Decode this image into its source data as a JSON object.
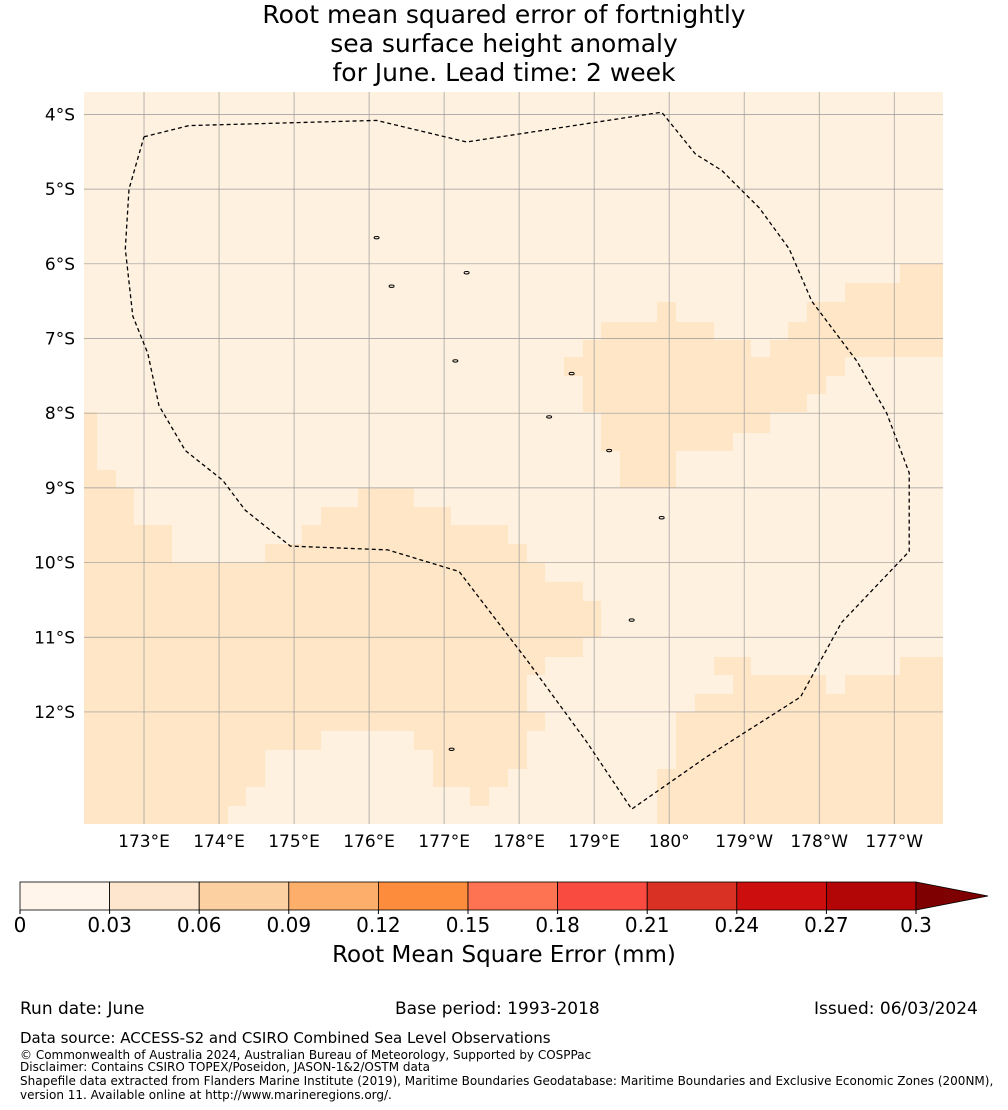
{
  "title_lines": [
    "Root mean squared error of fortnightly",
    "sea surface height anomaly",
    "for June. Lead time: 2 week"
  ],
  "map": {
    "lat_labels": [
      "4°S",
      "5°S",
      "6°S",
      "7°S",
      "8°S",
      "9°S",
      "10°S",
      "11°S",
      "12°S"
    ],
    "lon_labels": [
      "173°E",
      "174°E",
      "175°E",
      "176°E",
      "177°E",
      "178°E",
      "179°E",
      "180°",
      "179°W",
      "178°W",
      "177°W"
    ],
    "extent": {
      "lon_min": 172.2,
      "lon_max": 183.65,
      "lat_min": -13.5,
      "lat_max": -3.7
    },
    "colors": {
      "band1": "#fff1e0",
      "band2": "#fee6c7",
      "boundary": "#000000",
      "grid": "#999999"
    },
    "boundary_lonlat": [
      [
        173.0,
        -4.3
      ],
      [
        173.6,
        -4.15
      ],
      [
        176.1,
        -4.08
      ],
      [
        177.3,
        -4.37
      ],
      [
        179.9,
        -3.97
      ],
      [
        180.35,
        -4.53
      ],
      [
        180.7,
        -4.75
      ],
      [
        181.2,
        -5.25
      ],
      [
        181.6,
        -5.8
      ],
      [
        181.9,
        -6.5
      ],
      [
        182.5,
        -7.3
      ],
      [
        182.9,
        -8.0
      ],
      [
        183.2,
        -8.8
      ],
      [
        183.2,
        -9.85
      ],
      [
        182.3,
        -10.8
      ],
      [
        181.75,
        -11.8
      ],
      [
        180.5,
        -12.6
      ],
      [
        179.5,
        -13.3
      ],
      [
        178.9,
        -12.4
      ],
      [
        178.1,
        -11.3
      ],
      [
        177.2,
        -10.12
      ],
      [
        176.25,
        -9.83
      ],
      [
        174.95,
        -9.78
      ],
      [
        174.35,
        -9.3
      ],
      [
        174.05,
        -8.9
      ],
      [
        173.55,
        -8.5
      ],
      [
        173.2,
        -7.9
      ],
      [
        173.05,
        -7.2
      ],
      [
        172.85,
        -6.7
      ],
      [
        172.75,
        -5.8
      ],
      [
        172.8,
        -5.0
      ],
      [
        173.0,
        -4.3
      ]
    ],
    "islands_lonlat": [
      [
        176.1,
        -5.65
      ],
      [
        176.3,
        -6.3
      ],
      [
        177.3,
        -6.12
      ],
      [
        177.15,
        -7.3
      ],
      [
        178.7,
        -7.47
      ],
      [
        178.4,
        -8.05
      ],
      [
        179.2,
        -8.5
      ],
      [
        179.9,
        -9.4
      ],
      [
        179.5,
        -10.77
      ],
      [
        177.1,
        -12.5
      ]
    ]
  },
  "colorbar": {
    "tick_labels": [
      "0",
      "0.03",
      "0.06",
      "0.09",
      "0.12",
      "0.15",
      "0.18",
      "0.21",
      "0.24",
      "0.27",
      "0.3"
    ],
    "colors": [
      "#fff5eb",
      "#fee6ce",
      "#fdd0a2",
      "#fdae6b",
      "#fd8d3c",
      "#fe7352",
      "#f94b3f",
      "#d93224",
      "#cc0e0e",
      "#b20606",
      "#7f0000"
    ],
    "label": "Root Mean Square Error (mm)"
  },
  "footer": {
    "run_date": "Run date: June",
    "base_period": "Base period: 1993-2018",
    "issued": "Issued: 06/03/2024",
    "data_source": "Data source: ACCESS-S2 and CSIRO Combined Sea Level Observations",
    "copyright": "© Commonwealth of Australia 2024, Australian Bureau of Meteorology, Supported by COSPPac",
    "disclaimer": "Disclaimer: Contains CSIRO TOPEX/Poseidon, JASON-1&2/OSTM data",
    "shapefile_1": "Shapefile data extracted from Flanders Marine Institute (2019), Maritime Boundaries Geodatabase: Maritime Boundaries and Exclusive Economic Zones (200NM),",
    "shapefile_2": "version 11. Available online at http://www.marineregions.org/."
  }
}
